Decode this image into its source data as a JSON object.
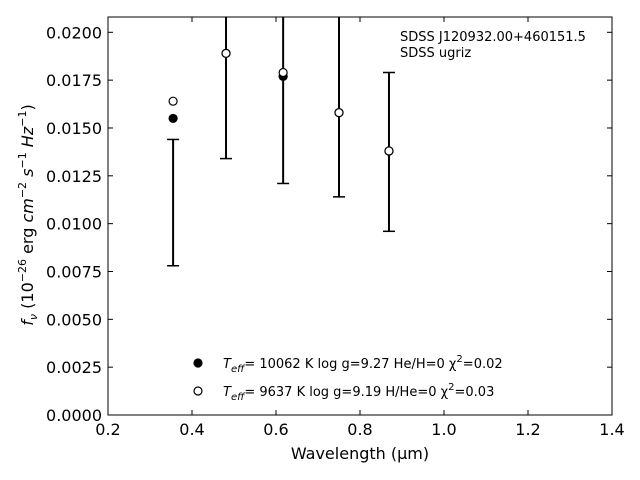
{
  "chart_data": {
    "type": "scatter",
    "title": "",
    "xlabel": "Wavelength (μm)",
    "ylabel": "fν (10⁻²⁶ erg cm⁻² s⁻¹ Hz⁻¹)",
    "xlim": [
      0.2,
      1.4
    ],
    "ylim": [
      0.0,
      0.0208
    ],
    "x_ticks": [
      0.2,
      0.4,
      0.6,
      0.8,
      1.0,
      1.2,
      1.4
    ],
    "y_ticks": [
      0.0,
      0.0025,
      0.005,
      0.0075,
      0.01,
      0.0125,
      0.015,
      0.0175,
      0.02
    ],
    "x_tick_labels": [
      "0.2",
      "0.4",
      "0.6",
      "0.8",
      "1.0",
      "1.2",
      "1.4"
    ],
    "y_tick_labels": [
      "0.0000",
      "0.0025",
      "0.0050",
      "0.0075",
      "0.0100",
      "0.0125",
      "0.0150",
      "0.0175",
      "0.0200"
    ],
    "grid": false,
    "annotations": [
      "SDSS J120932.00+460151.5",
      "SDSS ugriz"
    ],
    "observed": {
      "x": [
        0.355,
        0.481,
        0.617,
        0.75,
        0.869
      ],
      "y_low": [
        0.0078,
        0.0134,
        0.0121,
        0.0114,
        0.0096
      ],
      "y_high": [
        0.0144,
        0.0265,
        0.0265,
        0.0265,
        0.0179
      ],
      "y_high_clipped": [
        false,
        true,
        true,
        true,
        false
      ],
      "y_mid": [
        null,
        0.0189,
        0.0177,
        0.0158,
        0.0138
      ]
    },
    "series": [
      {
        "marker": "filled-circle",
        "legend_label": "Teff= 10062 K  log g=9.27  He/H=0  χ²=0.02",
        "x": [
          0.355,
          0.481,
          0.617,
          0.75,
          0.869
        ],
        "y": [
          0.0155,
          0.0189,
          0.0177,
          0.0158,
          0.0138
        ]
      },
      {
        "marker": "open-circle",
        "legend_label": "Teff=  9637 K  log g=9.19  H/He=0  χ²=0.03",
        "x": [
          0.355,
          0.481,
          0.617,
          0.75,
          0.869
        ],
        "y": [
          0.0164,
          0.0189,
          0.0179,
          0.0158,
          0.0138
        ]
      }
    ],
    "legend": {
      "position": "lower-center",
      "entries": [
        {
          "teff_value": "= 10062 K",
          "rest": "log g=9.27  He/H=0",
          "chi_value": "=0.02"
        },
        {
          "teff_value": "=  9637 K",
          "rest": "log g=9.19  H/He=0",
          "chi_value": "=0.03"
        }
      ]
    }
  }
}
